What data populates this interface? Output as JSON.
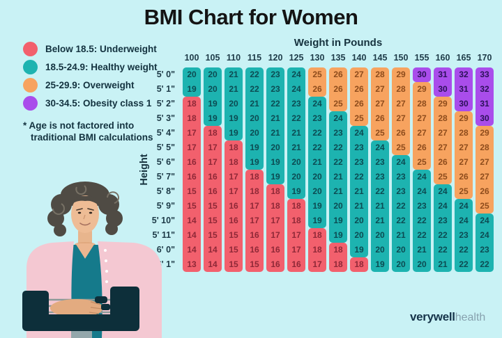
{
  "title": "BMI Chart for Women",
  "legend": {
    "items": [
      {
        "label": "Below 18.5: Underweight",
        "category": "underweight"
      },
      {
        "label": "18.5-24.9: Healthy weight",
        "category": "healthy"
      },
      {
        "label": "25-29.9: Overweight",
        "category": "overweight"
      },
      {
        "label": "30-34.5: Obesity class 1",
        "category": "obesity1"
      }
    ]
  },
  "note": {
    "line1": "* Age is not factored into",
    "line2": "traditional BMI calculations"
  },
  "categories": {
    "underweight": {
      "color": "#f2606d",
      "text_color": "#8e2837",
      "label": "Below 18.5: Underweight"
    },
    "healthy": {
      "color": "#1db3b0",
      "text_color": "#0c4b52",
      "label": "18.5-24.9: Healthy weight"
    },
    "overweight": {
      "color": "#f7a35f",
      "text_color": "#8e4c1c",
      "label": "25-29.9: Overweight"
    },
    "obesity1": {
      "color": "#a94deb",
      "text_color": "#2a1158",
      "label": "30-34.5: Obesity class 1"
    }
  },
  "chart_data": {
    "type": "heatmap",
    "title": "BMI Chart for Women",
    "xlabel": "Weight in Pounds",
    "ylabel": "Height",
    "x_weights_lb": [
      100,
      105,
      110,
      115,
      120,
      125,
      130,
      135,
      140,
      145,
      150,
      155,
      160,
      165,
      170
    ],
    "y_heights": [
      "5' 0\"",
      "5' 1\"",
      "5' 2\"",
      "5' 3\"",
      "5' 4\"",
      "5' 5\"",
      "5' 6\"",
      "5' 7\"",
      "5' 8\"",
      "5' 9\"",
      "5' 10\"",
      "5' 11\"",
      "6' 0\"",
      "6' 1\""
    ],
    "values": [
      [
        20,
        20,
        21,
        22,
        23,
        24,
        25,
        26,
        27,
        28,
        29,
        30,
        31,
        32,
        33
      ],
      [
        19,
        20,
        21,
        22,
        23,
        24,
        26,
        26,
        26,
        27,
        28,
        29,
        30,
        31,
        32
      ],
      [
        18,
        19,
        20,
        21,
        22,
        23,
        24,
        25,
        26,
        27,
        27,
        28,
        29,
        30,
        31
      ],
      [
        18,
        19,
        19,
        20,
        21,
        22,
        23,
        24,
        25,
        26,
        27,
        27,
        28,
        29,
        30
      ],
      [
        17,
        18,
        19,
        20,
        21,
        21,
        22,
        23,
        24,
        25,
        26,
        27,
        27,
        28,
        29
      ],
      [
        17,
        17,
        18,
        19,
        20,
        21,
        22,
        22,
        23,
        24,
        25,
        26,
        27,
        27,
        28
      ],
      [
        16,
        17,
        18,
        19,
        19,
        20,
        21,
        22,
        23,
        23,
        24,
        25,
        26,
        27,
        27
      ],
      [
        16,
        16,
        17,
        18,
        19,
        20,
        20,
        21,
        22,
        23,
        23,
        24,
        25,
        26,
        27
      ],
      [
        15,
        16,
        17,
        18,
        18,
        19,
        20,
        21,
        21,
        22,
        23,
        24,
        24,
        25,
        26
      ],
      [
        15,
        15,
        16,
        17,
        18,
        18,
        19,
        20,
        21,
        21,
        22,
        23,
        24,
        24,
        25
      ],
      [
        14,
        15,
        16,
        17,
        17,
        18,
        19,
        19,
        20,
        21,
        22,
        22,
        23,
        24,
        24
      ],
      [
        14,
        15,
        15,
        16,
        17,
        17,
        18,
        19,
        20,
        20,
        21,
        22,
        22,
        23,
        24
      ],
      [
        14,
        14,
        15,
        16,
        16,
        17,
        18,
        18,
        19,
        20,
        20,
        21,
        22,
        22,
        23
      ],
      [
        13,
        14,
        15,
        15,
        16,
        16,
        17,
        18,
        18,
        19,
        20,
        20,
        21,
        22,
        22
      ]
    ],
    "color_rules": [
      {
        "max": 18,
        "category": "underweight"
      },
      {
        "max": 24,
        "category": "healthy"
      },
      {
        "max": 29,
        "category": "overweight"
      },
      {
        "max": 99,
        "category": "obesity1"
      }
    ],
    "legend_position": "top-left",
    "grid": false
  },
  "logo": {
    "brand": "verywell",
    "suffix": "health"
  }
}
